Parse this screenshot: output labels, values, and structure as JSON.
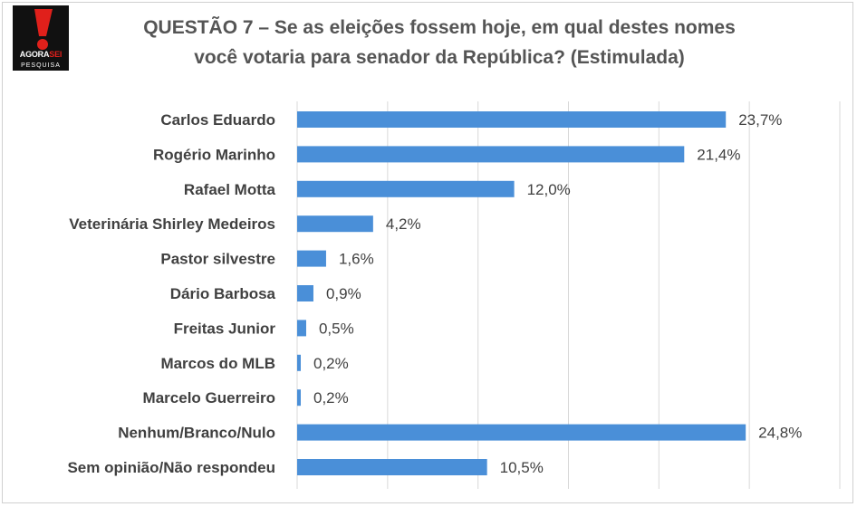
{
  "header": {
    "logo_text_main": "AGORA",
    "logo_text_accent": "SEI",
    "logo_sub": "PESQUISA",
    "title_line1": "QUESTÃO 7 – Se as eleições fossem hoje, em qual destes nomes",
    "title_line2": "você votaria para senador da República? (Estimulada)"
  },
  "colors": {
    "bar": "#4a8fd8",
    "grid": "#d9d9d9",
    "label": "#404040",
    "value": "#404040",
    "logo_red": "#e0201b"
  },
  "chart_data": {
    "type": "bar",
    "orientation": "horizontal",
    "categories": [
      "Carlos Eduardo",
      "Rogério Marinho",
      "Rafael Motta",
      "Veterinária Shirley Medeiros",
      "Pastor silvestre",
      "Dário Barbosa",
      "Freitas Junior",
      "Marcos do MLB",
      "Marcelo Guerreiro",
      "Nenhum/Branco/Nulo",
      "Sem opinião/Não respondeu"
    ],
    "values": [
      23.7,
      21.4,
      12.0,
      4.2,
      1.6,
      0.9,
      0.5,
      0.2,
      0.2,
      24.8,
      10.5
    ],
    "data_labels": [
      "23,7%",
      "21,4%",
      "12,0%",
      "4,2%",
      "1,6%",
      "0,9%",
      "0,5%",
      "0,2%",
      "0,2%",
      "24,8%",
      "10,5%"
    ],
    "xlim": [
      0,
      30
    ],
    "grid": true
  }
}
